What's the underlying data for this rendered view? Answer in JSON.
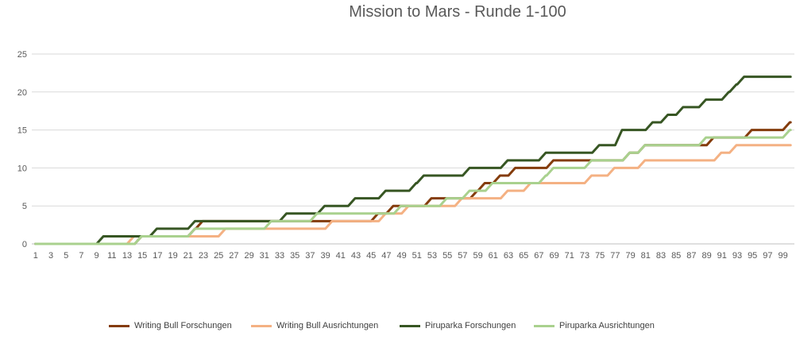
{
  "chart_data": {
    "type": "line",
    "title": "Mission to Mars - Runde 1-100",
    "xlabel": "",
    "ylabel": "",
    "ylim": [
      0,
      25
    ],
    "yticks": [
      0,
      5,
      10,
      15,
      20,
      25
    ],
    "x_tick_labels": [
      "1",
      "3",
      "5",
      "7",
      "9",
      "11",
      "13",
      "15",
      "17",
      "19",
      "21",
      "23",
      "25",
      "27",
      "29",
      "31",
      "33",
      "35",
      "37",
      "39",
      "41",
      "43",
      "45",
      "47",
      "49",
      "51",
      "53",
      "55",
      "57",
      "59",
      "61",
      "63",
      "65",
      "67",
      "69",
      "71",
      "73",
      "75",
      "77",
      "79",
      "81",
      "83",
      "85",
      "87",
      "89",
      "91",
      "93",
      "95",
      "97",
      "99"
    ],
    "grid": true,
    "legend_position": "bottom",
    "series": [
      {
        "name": "Writing Bull Forschungen",
        "color": "#843c0c",
        "breakpoints": [
          [
            1,
            0
          ],
          [
            15,
            1
          ],
          [
            22,
            2
          ],
          [
            23,
            3
          ],
          [
            38,
            3
          ],
          [
            46,
            4
          ],
          [
            48,
            5
          ],
          [
            53,
            6
          ],
          [
            55,
            6
          ],
          [
            59,
            7
          ],
          [
            60,
            8
          ],
          [
            62,
            9
          ],
          [
            64,
            10
          ],
          [
            69,
            11
          ],
          [
            79,
            12
          ],
          [
            81,
            13
          ],
          [
            90,
            14
          ],
          [
            95,
            15
          ],
          [
            100,
            16
          ]
        ]
      },
      {
        "name": "Writing Bull Ausrichtungen",
        "color": "#f4b183",
        "breakpoints": [
          [
            1,
            0
          ],
          [
            14,
            1
          ],
          [
            26,
            2
          ],
          [
            40,
            3
          ],
          [
            47,
            4
          ],
          [
            50,
            5
          ],
          [
            57,
            6
          ],
          [
            63,
            7
          ],
          [
            66,
            8
          ],
          [
            74,
            9
          ],
          [
            77,
            10
          ],
          [
            81,
            11
          ],
          [
            91,
            12
          ],
          [
            93,
            13
          ]
        ]
      },
      {
        "name": "Piruparka Forschungen",
        "color": "#375623",
        "breakpoints": [
          [
            1,
            0
          ],
          [
            10,
            1
          ],
          [
            17,
            2
          ],
          [
            22,
            3
          ],
          [
            34,
            4
          ],
          [
            39,
            5
          ],
          [
            43,
            6
          ],
          [
            47,
            7
          ],
          [
            51,
            8
          ],
          [
            52,
            9
          ],
          [
            58,
            10
          ],
          [
            63,
            11
          ],
          [
            68,
            12
          ],
          [
            75,
            13
          ],
          [
            78,
            15
          ],
          [
            82,
            16
          ],
          [
            84,
            17
          ],
          [
            86,
            18
          ],
          [
            89,
            19
          ],
          [
            92,
            20
          ],
          [
            93,
            21
          ],
          [
            94,
            22
          ]
        ]
      },
      {
        "name": "Piruparka Ausrichtungen",
        "color": "#a9d18e",
        "breakpoints": [
          [
            1,
            0
          ],
          [
            15,
            1
          ],
          [
            22,
            2
          ],
          [
            32,
            3
          ],
          [
            38,
            4
          ],
          [
            49,
            5
          ],
          [
            55,
            6
          ],
          [
            58,
            7
          ],
          [
            61,
            8
          ],
          [
            68,
            9
          ],
          [
            69,
            10
          ],
          [
            74,
            11
          ],
          [
            79,
            12
          ],
          [
            81,
            13
          ],
          [
            89,
            14
          ],
          [
            100,
            15
          ]
        ]
      }
    ]
  }
}
